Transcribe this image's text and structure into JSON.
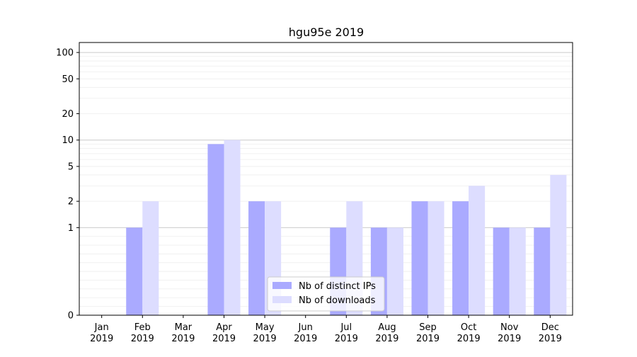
{
  "chart_data": {
    "type": "bar",
    "title": "hgu95e 2019",
    "xlabel": "",
    "ylabel": "",
    "yscale": "symlog",
    "ylim": [
      0,
      130
    ],
    "yticks": [
      0,
      1,
      2,
      5,
      10,
      20,
      50,
      100
    ],
    "grid": "horizontal, light",
    "legend_position": "lower center",
    "categories": [
      [
        "Jan",
        "2019"
      ],
      [
        "Feb",
        "2019"
      ],
      [
        "Mar",
        "2019"
      ],
      [
        "Apr",
        "2019"
      ],
      [
        "May",
        "2019"
      ],
      [
        "Jun",
        "2019"
      ],
      [
        "Jul",
        "2019"
      ],
      [
        "Aug",
        "2019"
      ],
      [
        "Sep",
        "2019"
      ],
      [
        "Oct",
        "2019"
      ],
      [
        "Nov",
        "2019"
      ],
      [
        "Dec",
        "2019"
      ]
    ],
    "series": [
      {
        "name": "Nb of distinct IPs",
        "color": "#aaaaff",
        "values": [
          0,
          1,
          0,
          9,
          2,
          0,
          1,
          1,
          2,
          2,
          1,
          1
        ]
      },
      {
        "name": "Nb of downloads",
        "color": "#ddddff",
        "values": [
          0,
          2,
          0,
          10,
          2,
          0,
          2,
          1,
          2,
          3,
          1,
          4
        ]
      }
    ]
  }
}
